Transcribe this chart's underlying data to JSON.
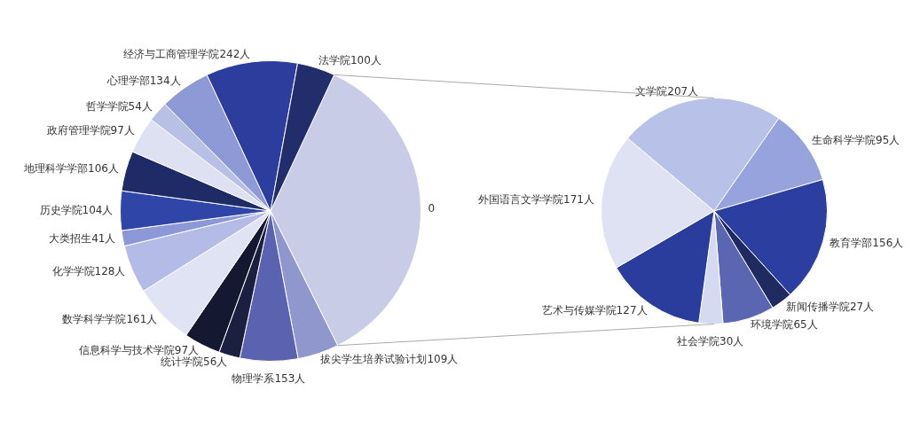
{
  "chart_data": [
    {
      "type": "pie",
      "categories": [
        "0",
        "拔尖学生培养试验计划109人",
        "物理学系153人",
        "统计学院56人",
        "信息科学与技术学院97人",
        "数学科学学院161人",
        "化学学院128人",
        "大类招生41人",
        "历史学院104人",
        "地理科学学部106人",
        "政府管理学院97人",
        "哲学学院54人",
        "心理学部134人",
        "经济与工商管理学院242人",
        "法学院100人"
      ],
      "values": [
        878,
        109,
        153,
        56,
        97,
        161,
        128,
        41,
        104,
        106,
        97,
        54,
        134,
        242,
        100
      ],
      "colors": [
        "#c8cce6",
        "#8f97cc",
        "#5b63b0",
        "#1c2040",
        "#141830",
        "#dfe3f3",
        "#b3bbe6",
        "#8c98d8",
        "#2f45a8",
        "#1e2b66",
        "#dde1f2",
        "#b8c0e6",
        "#8d9ad6",
        "#2c3d9e",
        "#222d6b"
      ]
    },
    {
      "type": "pie",
      "categories": [
        "文学院207人",
        "生命科学学院95人",
        "教育学部156人",
        "新闻传播学院27人",
        "环境学院65人",
        "社会学院30人",
        "艺术与传媒学院127人",
        "外国语言文学学院171人"
      ],
      "values": [
        207,
        95,
        156,
        27,
        65,
        30,
        127,
        171
      ],
      "colors": [
        "#b8c1e8",
        "#97a3dc",
        "#2c3fa0",
        "#1e2a60",
        "#5a66b2",
        "#d6daf0",
        "#2a3c9c",
        "#dfe2f2"
      ]
    }
  ]
}
